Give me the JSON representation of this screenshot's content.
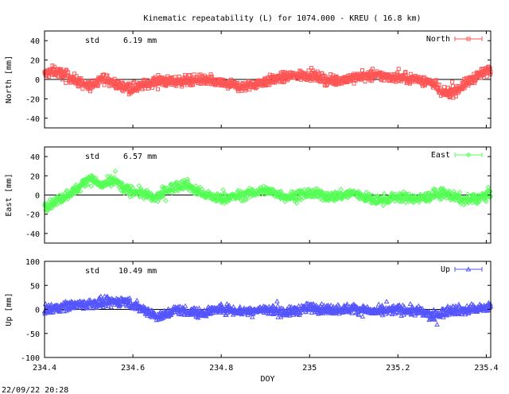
{
  "title": "Kinematic repeatability (L) for 1074.000 - KREU  ( 16.8 km)",
  "timestamp": "22/09/22 20:28",
  "chart_data": [
    {
      "type": "scatter",
      "panel": "north",
      "ylabel": "North [mm]",
      "legend": "North",
      "legend_position": "top-right",
      "stat_label": "std",
      "stat_value": "6.19 mm",
      "color": "#ff5555",
      "marker": "square",
      "ylim": [
        -50,
        50
      ],
      "yticks": [
        -40,
        -20,
        0,
        20,
        40
      ],
      "xlim": [
        234.4,
        235.41
      ],
      "std_mm": 6.19,
      "trend": {
        "x": [
          234.4,
          234.42,
          234.45,
          234.48,
          234.5,
          234.53,
          234.56,
          234.6,
          234.65,
          234.7,
          234.75,
          234.8,
          234.85,
          234.9,
          234.95,
          235.0,
          235.05,
          235.1,
          235.15,
          235.2,
          235.25,
          235.28,
          235.3,
          235.33,
          235.36,
          235.38,
          235.41
        ],
        "y": [
          5,
          9,
          4,
          -3,
          -8,
          2,
          -5,
          -9,
          -2,
          -2,
          0,
          -4,
          -8,
          -2,
          3,
          5,
          -2,
          2,
          4,
          2,
          0,
          -4,
          -15,
          -12,
          -2,
          4,
          10
        ]
      }
    },
    {
      "type": "scatter",
      "panel": "east",
      "ylabel": "East [mm]",
      "legend": "East",
      "legend_position": "top-right",
      "stat_label": "std",
      "stat_value": "6.57 mm",
      "color": "#55ff55",
      "marker": "diamond",
      "ylim": [
        -50,
        50
      ],
      "yticks": [
        -40,
        -20,
        0,
        20,
        40
      ],
      "xlim": [
        234.4,
        235.41
      ],
      "std_mm": 6.57,
      "trend": {
        "x": [
          234.4,
          234.42,
          234.45,
          234.48,
          234.5,
          234.53,
          234.56,
          234.58,
          234.62,
          234.65,
          234.68,
          234.72,
          234.75,
          234.8,
          234.85,
          234.9,
          234.95,
          235.0,
          235.05,
          235.1,
          235.15,
          235.2,
          235.25,
          235.3,
          235.35,
          235.38,
          235.41
        ],
        "y": [
          -12,
          -8,
          0,
          8,
          18,
          10,
          15,
          6,
          2,
          -4,
          6,
          12,
          2,
          -4,
          0,
          5,
          -2,
          2,
          -2,
          2,
          -6,
          -2,
          -4,
          2,
          -5,
          -4,
          2
        ]
      }
    },
    {
      "type": "scatter",
      "panel": "up",
      "ylabel": "Up [mm]",
      "legend": "Up",
      "legend_position": "top-right",
      "stat_label": "std",
      "stat_value": "10.49 mm",
      "color": "#5555ff",
      "marker": "triangle",
      "ylim": [
        -100,
        100
      ],
      "yticks": [
        -100,
        -50,
        0,
        50,
        100
      ],
      "xlim": [
        234.4,
        235.41
      ],
      "xlabel": "DOY",
      "xticks": [
        234.4,
        234.6,
        234.8,
        235,
        235.2,
        235.4
      ],
      "std_mm": 10.49,
      "trend": {
        "x": [
          234.4,
          234.45,
          234.5,
          234.55,
          234.58,
          234.62,
          234.66,
          234.7,
          234.75,
          234.8,
          234.85,
          234.9,
          234.95,
          235.0,
          235.05,
          235.1,
          235.15,
          235.2,
          235.25,
          235.28,
          235.32,
          235.36,
          235.41
        ],
        "y": [
          0,
          8,
          12,
          15,
          18,
          2,
          -15,
          0,
          -8,
          2,
          -4,
          0,
          -6,
          4,
          0,
          2,
          -5,
          0,
          -4,
          -15,
          0,
          -2,
          6
        ]
      }
    }
  ]
}
